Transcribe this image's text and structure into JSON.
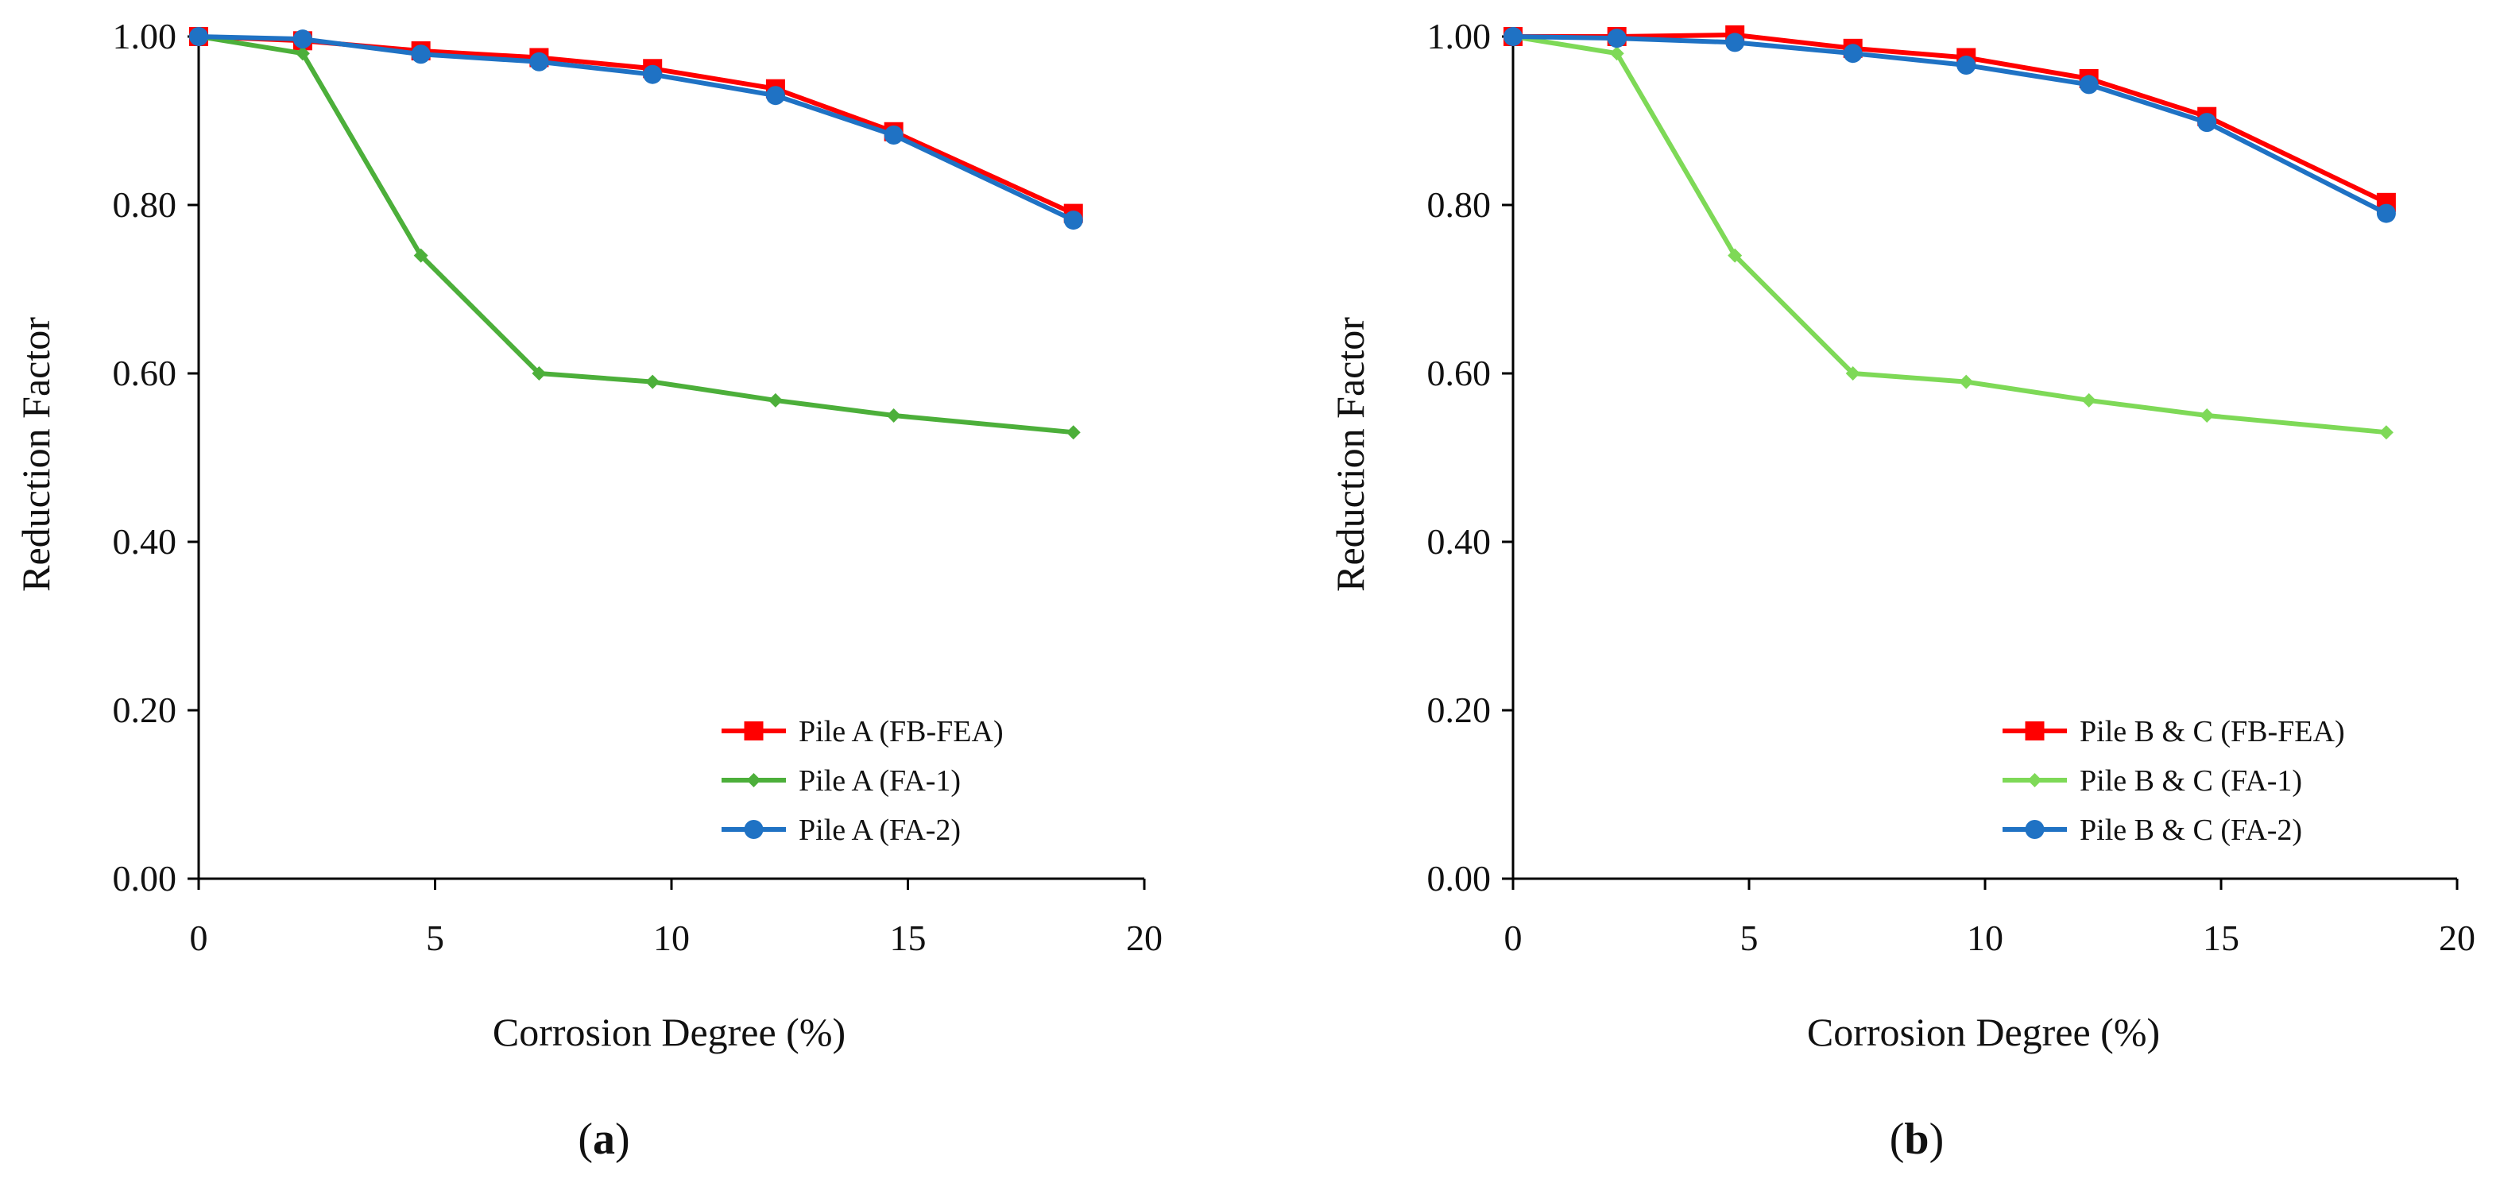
{
  "chart_data": [
    {
      "type": "line",
      "panel_label_letter": "a",
      "xlabel": "Corrosion Degree (%)",
      "ylabel": "Reduction Factor",
      "xlim": [
        0,
        20
      ],
      "ylim": [
        0,
        1.0
      ],
      "xticks": [
        0,
        5,
        10,
        15,
        20
      ],
      "yticks": [
        0.0,
        0.2,
        0.4,
        0.6,
        0.8,
        1.0
      ],
      "ytick_labels": [
        "0.00",
        "0.20",
        "0.40",
        "0.60",
        "0.80",
        "1.00"
      ],
      "xtick_labels": [
        "0",
        "5",
        "10",
        "15",
        "20"
      ],
      "grid": false,
      "legend_position": "bottom-right",
      "x": [
        0,
        2.2,
        4.7,
        7.2,
        9.6,
        12.2,
        14.7,
        18.5
      ],
      "series": [
        {
          "name": "Pile A (FB-FEA)",
          "color": "#ff0000",
          "marker": "square",
          "values": [
            1.0,
            0.995,
            0.983,
            0.975,
            0.962,
            0.938,
            0.887,
            0.79
          ]
        },
        {
          "name": "Pile A (FA-1)",
          "color": "#4caf3a",
          "marker": "diamond",
          "values": [
            1.0,
            0.98,
            0.74,
            0.6,
            0.59,
            0.568,
            0.55,
            0.53
          ]
        },
        {
          "name": "Pile A (FA-2)",
          "color": "#1f72c4",
          "marker": "circle",
          "values": [
            1.0,
            0.997,
            0.979,
            0.97,
            0.955,
            0.93,
            0.883,
            0.782
          ]
        }
      ]
    },
    {
      "type": "line",
      "panel_label_letter": "b",
      "xlabel": "Corrosion Degree (%)",
      "ylabel": "Reduction Factor",
      "xlim": [
        0,
        20
      ],
      "ylim": [
        0,
        1.0
      ],
      "xticks": [
        0,
        5,
        10,
        15,
        20
      ],
      "yticks": [
        0.0,
        0.2,
        0.4,
        0.6,
        0.8,
        1.0
      ],
      "ytick_labels": [
        "0.00",
        "0.20",
        "0.40",
        "0.60",
        "0.80",
        "1.00"
      ],
      "xtick_labels": [
        "0",
        "5",
        "10",
        "15",
        "20"
      ],
      "grid": false,
      "legend_position": "bottom-right",
      "x": [
        0,
        2.2,
        4.7,
        7.2,
        9.6,
        12.2,
        14.7,
        18.5
      ],
      "series": [
        {
          "name": "Pile B & C (FB-FEA)",
          "color": "#ff0000",
          "marker": "square",
          "values": [
            1.0,
            1.0,
            1.002,
            0.986,
            0.975,
            0.95,
            0.905,
            0.803
          ]
        },
        {
          "name": "Pile B & C (FA-1)",
          "color": "#7ed957",
          "marker": "diamond",
          "values": [
            1.0,
            0.98,
            0.74,
            0.6,
            0.59,
            0.568,
            0.55,
            0.53
          ]
        },
        {
          "name": "Pile B & C (FA-2)",
          "color": "#1f72c4",
          "marker": "circle",
          "values": [
            1.0,
            0.998,
            0.993,
            0.98,
            0.966,
            0.943,
            0.898,
            0.79
          ]
        }
      ]
    }
  ]
}
